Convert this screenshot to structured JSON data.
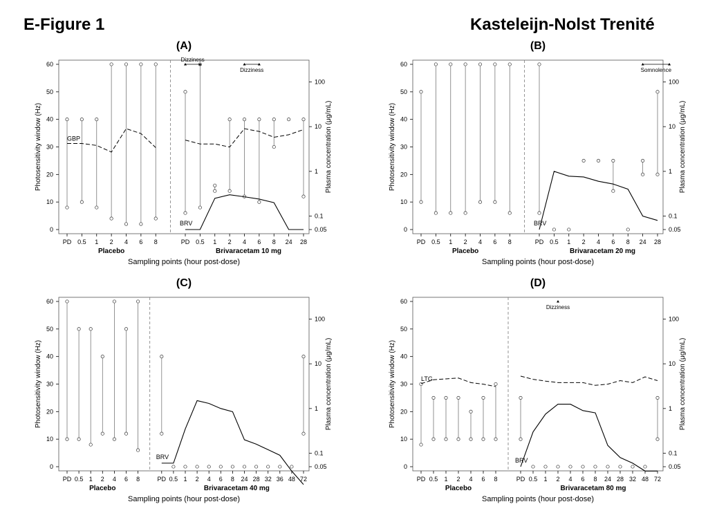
{
  "figure_title": "E-Figure 1",
  "author": "Kasteleijn-Nolst Trenité",
  "common": {
    "ylabel_left": "Photosensitivity window (Hz)",
    "ylabel_right": "Plasma concentration (μg/mL)",
    "xlabel": "Sampling points (hour post-dose)",
    "placebo_label": "Placebo",
    "left_ticks": [
      0,
      10,
      20,
      30,
      40,
      50,
      60
    ],
    "right_ticks": [
      "0.05",
      "0.1",
      "1",
      "10",
      "100"
    ]
  },
  "chart_data": [
    {
      "type": "line",
      "panel": "(A)",
      "brv_group_label": "Brivaracetam 10 mg",
      "placebo_categories": [
        "PD",
        "0.5",
        "1",
        "2",
        "4",
        "6",
        "8"
      ],
      "brv_categories": [
        "PD",
        "0.5",
        "1",
        "2",
        "4",
        "6",
        "8",
        "24",
        "28"
      ],
      "placebo_window": [
        [
          8,
          40
        ],
        [
          10,
          40
        ],
        [
          8,
          40
        ],
        [
          4,
          60
        ],
        [
          2,
          60
        ],
        [
          2,
          60
        ],
        [
          4,
          60
        ]
      ],
      "brv_window": [
        [
          6,
          50
        ],
        [
          8,
          60
        ],
        [
          14,
          16
        ],
        [
          14,
          40
        ],
        [
          12,
          40
        ],
        [
          10,
          40
        ],
        [
          30,
          40
        ],
        [
          40,
          40
        ],
        [
          12,
          40
        ]
      ],
      "comed": {
        "name": "GBP",
        "placebo_conc": [
          4.2,
          4.2,
          3.8,
          2.7,
          9.0,
          7.0,
          3.4
        ],
        "brv_conc": [
          5.0,
          4.1,
          4.1,
          3.5,
          9.0,
          7.8,
          5.8,
          6.6,
          8.6
        ]
      },
      "brv": {
        "name": "BRV",
        "conc": [
          0.05,
          0.05,
          0.25,
          0.3,
          0.27,
          0.24,
          0.2,
          0.05,
          0.05
        ]
      },
      "ae_bars": [
        {
          "label": "Dizziness",
          "from": 0,
          "to": 1,
          "position": "above"
        },
        {
          "label": "Dizziness",
          "from": 4,
          "to": 5,
          "position": "below"
        }
      ]
    },
    {
      "type": "line",
      "panel": "(B)",
      "brv_group_label": "Brivaracetam 20 mg",
      "placebo_categories": [
        "PD",
        "0.5",
        "1",
        "2",
        "4",
        "6",
        "8"
      ],
      "brv_categories": [
        "PD",
        "0.5",
        "1",
        "2",
        "4",
        "6",
        "8",
        "24",
        "28"
      ],
      "placebo_window": [
        [
          10,
          50
        ],
        [
          6,
          60
        ],
        [
          6,
          60
        ],
        [
          6,
          60
        ],
        [
          10,
          60
        ],
        [
          10,
          60
        ],
        [
          6,
          60
        ]
      ],
      "brv_window": [
        [
          6,
          60
        ],
        [
          0,
          0
        ],
        [
          0,
          0
        ],
        [
          25,
          25
        ],
        [
          25,
          25
        ],
        [
          14,
          25
        ],
        [
          0,
          0
        ],
        [
          20,
          25
        ],
        [
          20,
          50
        ]
      ],
      "comed": null,
      "brv": {
        "name": "BRV",
        "conc": [
          0.05,
          1.0,
          0.78,
          0.75,
          0.6,
          0.52,
          0.4,
          0.1,
          0.08
        ]
      },
      "ae_bars": [
        {
          "label": "Somnolence",
          "from": 7,
          "to": 8.8,
          "position": "below"
        }
      ]
    },
    {
      "type": "line",
      "panel": "(C)",
      "brv_group_label": "Brivaracetam 40 mg",
      "placebo_categories": [
        "PD",
        "0.5",
        "1",
        "2",
        "4",
        "6",
        "8"
      ],
      "brv_categories": [
        "PD",
        "0.5",
        "1",
        "2",
        "4",
        "6",
        "8",
        "24",
        "28",
        "32",
        "36",
        "48",
        "72"
      ],
      "placebo_window": [
        [
          10,
          60
        ],
        [
          10,
          50
        ],
        [
          8,
          50
        ],
        [
          12,
          40
        ],
        [
          10,
          60
        ],
        [
          12,
          50
        ],
        [
          6,
          60
        ]
      ],
      "brv_window": [
        [
          12,
          40
        ],
        [
          0,
          0
        ],
        [
          0,
          0
        ],
        [
          0,
          0
        ],
        [
          0,
          0
        ],
        [
          0,
          0
        ],
        [
          0,
          0
        ],
        [
          0,
          0
        ],
        [
          0,
          0
        ],
        [
          0,
          0
        ],
        [
          0,
          0
        ],
        [
          0,
          0
        ],
        [
          12,
          40
        ]
      ],
      "comed": null,
      "brv": {
        "name": "BRV",
        "conc": [
          0.06,
          0.06,
          0.35,
          1.5,
          1.3,
          1.0,
          0.85,
          0.2,
          0.16,
          0.12,
          0.09,
          0.04,
          0.02
        ]
      },
      "ae_bars": []
    },
    {
      "type": "line",
      "panel": "(D)",
      "brv_group_label": "Brivaracetam 80 mg",
      "placebo_categories": [
        "PD",
        "0.5",
        "1",
        "2",
        "4",
        "6",
        "8"
      ],
      "brv_categories": [
        "PD",
        "0.5",
        "1",
        "2",
        "4",
        "6",
        "8",
        "24",
        "28",
        "32",
        "48",
        "72"
      ],
      "placebo_window": [
        [
          8,
          30
        ],
        [
          10,
          25
        ],
        [
          10,
          25
        ],
        [
          10,
          25
        ],
        [
          10,
          20
        ],
        [
          10,
          25
        ],
        [
          10,
          30
        ]
      ],
      "brv_window": [
        [
          10,
          25
        ],
        [
          0,
          0
        ],
        [
          0,
          0
        ],
        [
          0,
          0
        ],
        [
          0,
          0
        ],
        [
          0,
          0
        ],
        [
          0,
          0
        ],
        [
          0,
          0
        ],
        [
          0,
          0
        ],
        [
          0,
          0
        ],
        [
          0,
          0
        ],
        [
          10,
          25
        ]
      ],
      "comed": {
        "name": "LTG",
        "placebo_conc": [
          3.6,
          4.4,
          4.6,
          4.8,
          3.8,
          3.5,
          3.1
        ],
        "brv_conc": [
          5.3,
          4.5,
          4.1,
          3.8,
          3.8,
          3.8,
          3.3,
          3.5,
          4.2,
          3.8,
          5.1,
          4.2
        ]
      },
      "brv": {
        "name": "BRV",
        "conc": [
          0.05,
          0.3,
          0.75,
          1.25,
          1.25,
          0.9,
          0.8,
          0.15,
          0.08,
          0.06,
          0.04,
          0.04
        ]
      },
      "ae_bars": [
        {
          "label": "Dizziness",
          "from": 3,
          "to": 3,
          "position": "below"
        }
      ]
    }
  ]
}
